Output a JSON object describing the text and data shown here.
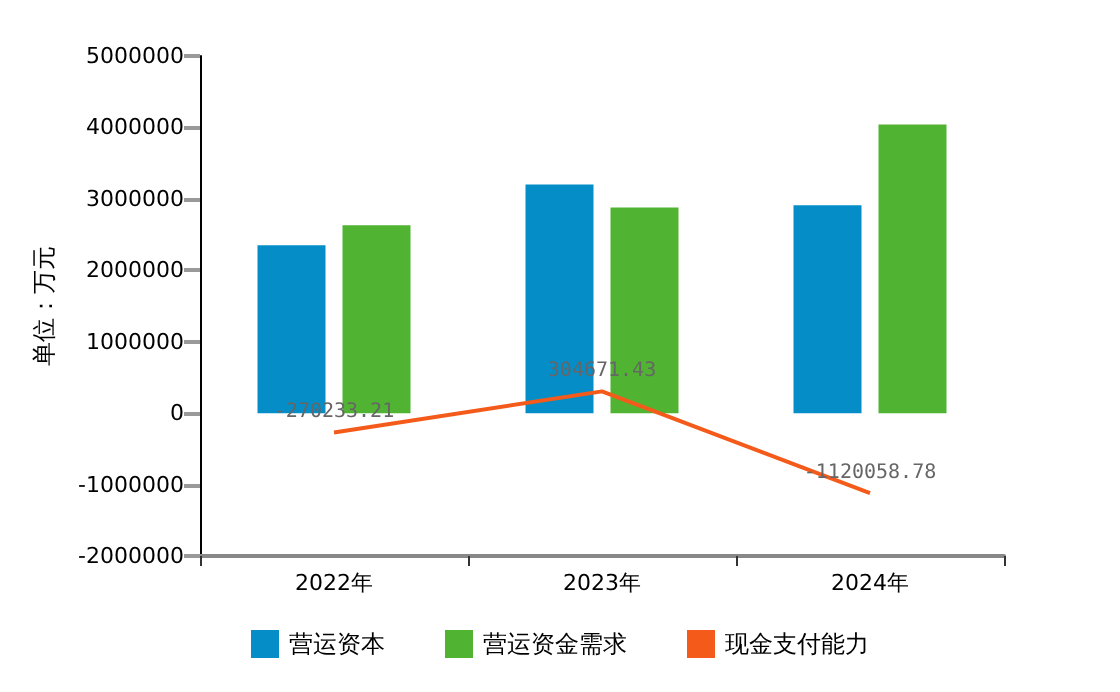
{
  "chart_data": {
    "type": "bar",
    "ylabel": "单位：万元",
    "categories": [
      "2022年",
      "2023年",
      "2024年"
    ],
    "series": [
      {
        "name": "营运资本",
        "color": "#058dc7",
        "values": [
          2350000,
          3200000,
          2910000
        ]
      },
      {
        "name": "营运资金需求",
        "color": "#50b432",
        "values": [
          2630000,
          2880000,
          4040000
        ]
      },
      {
        "name": "现金支付能力",
        "type": "line",
        "color": "#f45b1b",
        "values": [
          -270233.21,
          304671.43,
          -1120058.78
        ],
        "value_labels": [
          "-270233.21",
          "304671.43",
          "-1120058.78"
        ]
      }
    ],
    "ylim": [
      -2000000,
      5000000
    ],
    "yticks": [
      -2000000,
      -1000000,
      0,
      1000000,
      2000000,
      3000000,
      4000000,
      5000000
    ],
    "grid": false,
    "legend": "bottom",
    "marker": "none"
  }
}
